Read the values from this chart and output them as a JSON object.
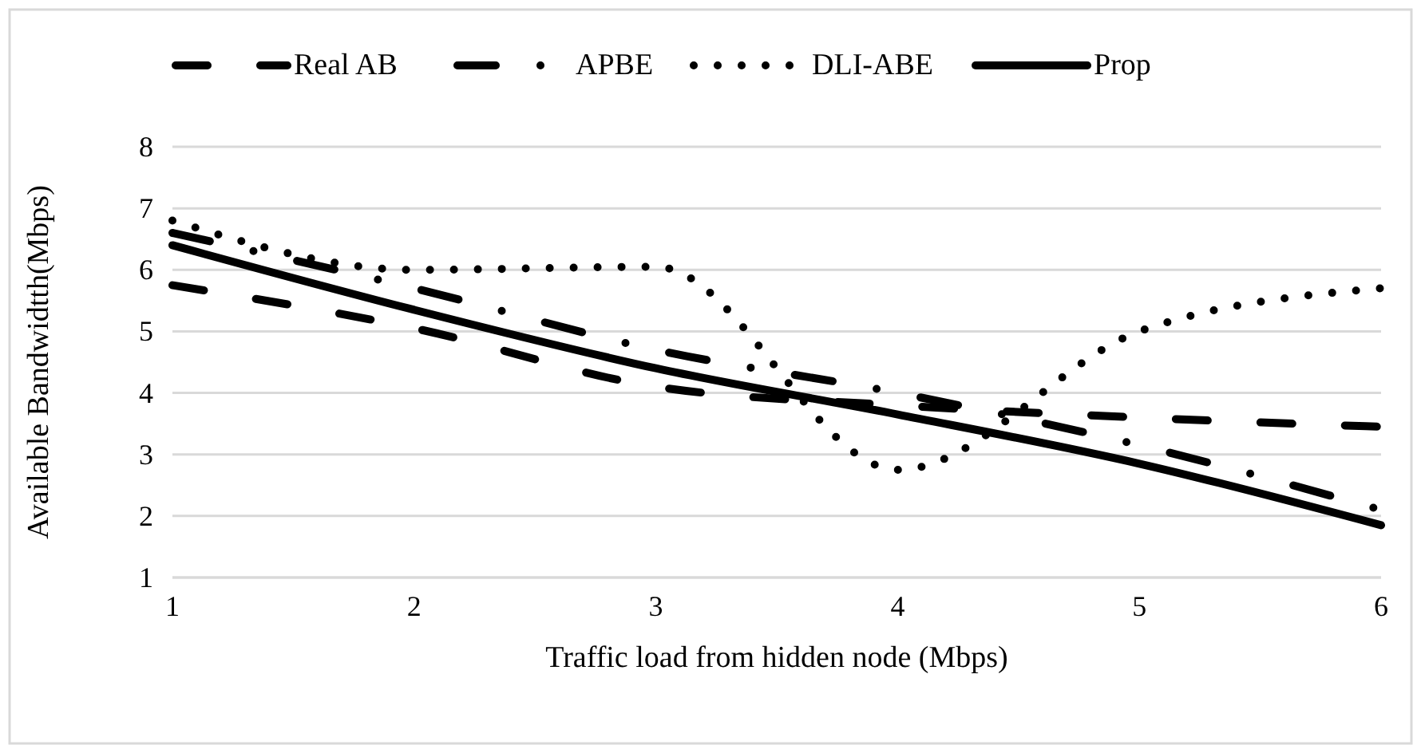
{
  "chart_data": {
    "type": "line",
    "xlabel": "Traffic load from hidden node (Mbps)",
    "ylabel": "Available Bandwidtth(Mbps)",
    "x": [
      1,
      2,
      3,
      4,
      5,
      6
    ],
    "xlim": [
      1,
      6
    ],
    "xticks": [
      1,
      2,
      3,
      4,
      5,
      6
    ],
    "ylim": [
      1,
      8
    ],
    "yticks": [
      1,
      2,
      3,
      4,
      5,
      6,
      7,
      8
    ],
    "grid": "y",
    "legend": "top",
    "marker": "none",
    "series": [
      {
        "name": "Real AB",
        "color": "#000000",
        "line_style": "dashed",
        "values": [
          5.75,
          5.05,
          4.1,
          3.8,
          3.6,
          3.45
        ]
      },
      {
        "name": "APBE",
        "color": "#000000",
        "line_style": "dashdot",
        "values": [
          6.6,
          5.7,
          4.7,
          4.0,
          3.15,
          2.1
        ]
      },
      {
        "name": "DLI-ABE",
        "color": "#000000",
        "line_style": "dotted",
        "values": [
          6.8,
          6.0,
          6.05,
          2.75,
          5.0,
          5.7
        ]
      },
      {
        "name": "Prop",
        "color": "#000000",
        "line_style": "solid",
        "values": [
          6.4,
          5.35,
          4.4,
          3.65,
          2.85,
          1.85
        ]
      }
    ]
  }
}
